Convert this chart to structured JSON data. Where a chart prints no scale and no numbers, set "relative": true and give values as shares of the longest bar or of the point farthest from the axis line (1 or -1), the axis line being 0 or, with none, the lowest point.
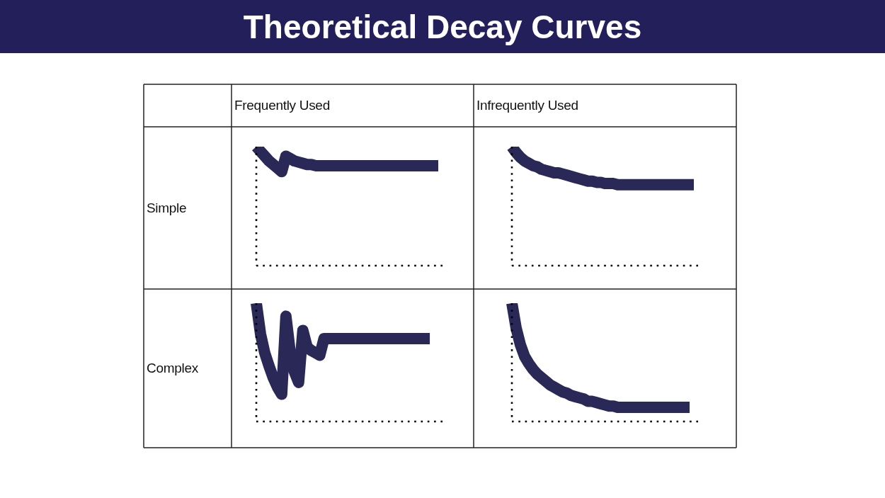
{
  "chart_data": [
    {
      "type": "other",
      "title": "Theoretical Decay Curves"
    },
    {
      "type": "line",
      "title": "Frequently Used",
      "ylabel": "Simple",
      "relative": true,
      "marker": "none",
      "line_style": "solid",
      "color": "#2a2857",
      "categories": [
        null,
        null,
        null,
        null,
        null,
        null,
        null,
        null,
        null,
        null,
        null,
        null,
        null,
        null,
        null,
        null,
        null,
        null,
        null,
        null,
        null,
        null,
        null,
        null,
        null,
        null,
        null,
        null,
        null,
        null,
        null,
        null,
        null,
        null,
        null,
        null,
        null,
        null,
        null,
        null,
        null,
        null,
        null,
        null,
        null
      ],
      "values": [
        1.0,
        0.96,
        0.92,
        0.88,
        0.85,
        0.82,
        0.79,
        0.92,
        0.9,
        0.88,
        0.87,
        0.86,
        0.85,
        0.85,
        0.84,
        0.84,
        0.84,
        0.84,
        0.84,
        0.84,
        0.84,
        0.84,
        0.84,
        0.84,
        0.84,
        0.84,
        0.84,
        0.84,
        0.84,
        0.84,
        0.84,
        0.84,
        0.84,
        0.84,
        0.84,
        0.84,
        0.84,
        0.84,
        0.84,
        0.84,
        0.84,
        0.84,
        0.84,
        0.84,
        null
      ]
    },
    {
      "type": "line",
      "title": "Infrequently Used",
      "relative": true,
      "marker": "none",
      "line_style": "solid",
      "color": "#2a2857",
      "categories": [
        null,
        null,
        null,
        null,
        null,
        null,
        null,
        null,
        null,
        null,
        null,
        null,
        null,
        null,
        null,
        null,
        null,
        null,
        null,
        null,
        null,
        null,
        null,
        null,
        null,
        null,
        null,
        null,
        null,
        null,
        null,
        null,
        null,
        null,
        null,
        null,
        null,
        null,
        null,
        null,
        null,
        null,
        null,
        null,
        null
      ],
      "values": [
        1.0,
        0.95,
        0.91,
        0.88,
        0.86,
        0.84,
        0.83,
        0.81,
        0.8,
        0.79,
        0.78,
        0.78,
        0.77,
        0.76,
        0.75,
        0.74,
        0.73,
        0.72,
        0.71,
        0.71,
        0.7,
        0.7,
        0.69,
        0.69,
        0.69,
        0.68,
        0.68,
        0.68,
        0.68,
        0.68,
        0.68,
        0.68,
        0.68,
        0.68,
        0.68,
        0.68,
        0.68,
        0.68,
        0.68,
        0.68,
        0.68,
        0.68,
        0.68,
        0.68,
        null
      ]
    },
    {
      "type": "line",
      "ylabel": "Complex",
      "relative": true,
      "marker": "none",
      "line_style": "solid",
      "color": "#2a2857",
      "categories": [
        null,
        null,
        null,
        null,
        null,
        null,
        null,
        null,
        null,
        null,
        null,
        null,
        null,
        null,
        null,
        null,
        null,
        null,
        null,
        null,
        null,
        null,
        null,
        null,
        null,
        null,
        null,
        null,
        null,
        null,
        null,
        null,
        null,
        null,
        null,
        null,
        null,
        null,
        null,
        null,
        null,
        null,
        null,
        null,
        null
      ],
      "values": [
        1.0,
        0.74,
        0.58,
        0.47,
        0.37,
        0.29,
        0.23,
        0.89,
        0.59,
        0.42,
        0.33,
        0.77,
        0.63,
        0.6,
        0.58,
        0.56,
        0.7,
        0.7,
        0.7,
        0.7,
        0.7,
        0.7,
        0.7,
        0.7,
        0.7,
        0.7,
        0.7,
        0.7,
        0.7,
        0.7,
        0.7,
        0.7,
        0.7,
        0.7,
        0.7,
        0.7,
        0.7,
        0.7,
        0.7,
        0.7,
        0.7,
        0.7,
        null,
        null,
        null
      ]
    },
    {
      "type": "line",
      "relative": true,
      "marker": "none",
      "line_style": "solid",
      "color": "#2a2857",
      "categories": [
        null,
        null,
        null,
        null,
        null,
        null,
        null,
        null,
        null,
        null,
        null,
        null,
        null,
        null,
        null,
        null,
        null,
        null,
        null,
        null,
        null,
        null,
        null,
        null,
        null,
        null,
        null,
        null,
        null,
        null,
        null,
        null,
        null,
        null,
        null,
        null,
        null,
        null,
        null,
        null,
        null,
        null,
        null,
        null,
        null
      ],
      "values": [
        1.0,
        0.79,
        0.65,
        0.55,
        0.49,
        0.44,
        0.4,
        0.37,
        0.34,
        0.31,
        0.29,
        0.27,
        0.25,
        0.24,
        0.22,
        0.21,
        0.2,
        0.19,
        0.17,
        0.17,
        0.16,
        0.15,
        0.14,
        0.13,
        0.13,
        0.12,
        0.12,
        0.12,
        0.12,
        0.12,
        0.12,
        0.12,
        0.12,
        0.12,
        0.12,
        0.12,
        0.12,
        0.12,
        0.12,
        0.12,
        0.12,
        0.12,
        0.12,
        null,
        null
      ]
    }
  ]
}
